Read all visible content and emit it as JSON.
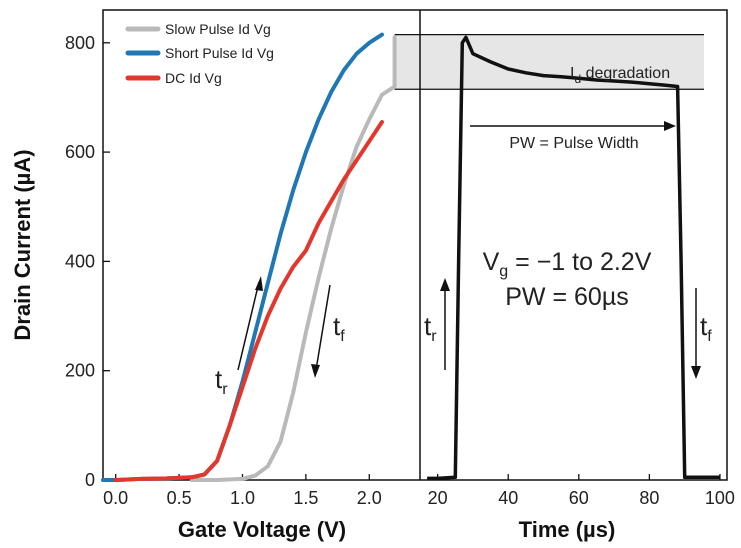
{
  "chart_data": [
    {
      "type": "line",
      "xlabel": "Gate Voltage (V)",
      "ylabel": "Drain Current (µA)",
      "xlim": [
        -0.1,
        2.4
      ],
      "ylim": [
        0,
        860
      ],
      "xticks": [
        "0.0",
        "0.5",
        "1.0",
        "1.5",
        "2.0"
      ],
      "xtick_values": [
        0.0,
        0.5,
        1.0,
        1.5,
        2.0
      ],
      "yticks": [
        "0",
        "200",
        "400",
        "600",
        "800"
      ],
      "ytick_values": [
        0,
        200,
        400,
        600,
        800
      ],
      "legend_position": "top-left",
      "series": [
        {
          "name": "Slow Pulse Id Vg",
          "color": "#b9b9b9",
          "x": [
            0.6,
            0.8,
            1.0,
            1.1,
            1.2,
            1.3,
            1.4,
            1.5,
            1.6,
            1.7,
            1.8,
            1.9,
            2.0,
            2.1,
            2.2,
            2.2,
            2.2
          ],
          "y": [
            0,
            0,
            2,
            8,
            25,
            70,
            160,
            270,
            370,
            460,
            540,
            610,
            660,
            705,
            720,
            760,
            810
          ]
        },
        {
          "name": "Short Pulse Id Vg",
          "color": "#1f77b4",
          "x": [
            -0.1,
            0.0,
            0.2,
            0.4,
            0.6,
            0.7,
            0.8,
            0.9,
            1.0,
            1.1,
            1.2,
            1.3,
            1.4,
            1.5,
            1.6,
            1.7,
            1.8,
            1.9,
            2.0,
            2.1
          ],
          "y": [
            0,
            0,
            2,
            3,
            5,
            10,
            35,
            100,
            180,
            270,
            360,
            450,
            530,
            600,
            660,
            710,
            750,
            780,
            800,
            815
          ]
        },
        {
          "name": "DC Id Vg",
          "color": "#e2372d",
          "x": [
            0.0,
            0.2,
            0.4,
            0.6,
            0.7,
            0.8,
            0.9,
            1.0,
            1.1,
            1.2,
            1.3,
            1.4,
            1.5,
            1.6,
            1.7,
            1.8,
            1.9,
            2.0,
            2.1
          ],
          "y": [
            0,
            2,
            3,
            5,
            10,
            35,
            100,
            170,
            240,
            300,
            350,
            390,
            420,
            470,
            510,
            550,
            585,
            620,
            655
          ]
        }
      ],
      "annotations": {
        "t_r": "t",
        "t_r_sub": "r",
        "t_f": "t",
        "t_f_sub": "f"
      }
    },
    {
      "type": "line",
      "xlabel": "Time (µs)",
      "ylabel": "",
      "xlim": [
        15,
        102
      ],
      "ylim": [
        0,
        860
      ],
      "xticks": [
        "20",
        "40",
        "60",
        "80",
        "100"
      ],
      "xtick_values": [
        20,
        40,
        60,
        80,
        100
      ],
      "series": [
        {
          "color": "#111111",
          "x": [
            17,
            20,
            25,
            26,
            27,
            28,
            30,
            35,
            40,
            45,
            50,
            55,
            60,
            65,
            70,
            75,
            80,
            85,
            88,
            89,
            90,
            95,
            100
          ],
          "y": [
            3,
            3,
            5,
            420,
            800,
            810,
            780,
            765,
            752,
            745,
            740,
            738,
            735,
            732,
            730,
            728,
            725,
            722,
            720,
            400,
            5,
            5,
            5
          ]
        }
      ],
      "annotations": {
        "degradation_label": "I",
        "degradation_label_sub": "d",
        "degradation_label_rest": " degradation",
        "degradation_band": [
          715,
          815
        ],
        "pw_label": "PW = Pulse Width",
        "vg_label": "V",
        "vg_label_sub": "g",
        "vg_label_rest": " = −1 to 2.2V",
        "pw_value_label": "PW = 60µs",
        "t_r": "t",
        "t_r_sub": "r",
        "t_f": "t",
        "t_f_sub": "f"
      }
    }
  ]
}
